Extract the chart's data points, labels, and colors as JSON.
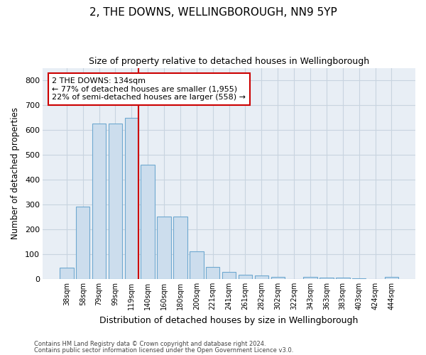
{
  "title1": "2, THE DOWNS, WELLINGBOROUGH, NN9 5YP",
  "title2": "Size of property relative to detached houses in Wellingborough",
  "xlabel": "Distribution of detached houses by size in Wellingborough",
  "ylabel": "Number of detached properties",
  "categories": [
    "38sqm",
    "58sqm",
    "79sqm",
    "99sqm",
    "119sqm",
    "140sqm",
    "160sqm",
    "180sqm",
    "200sqm",
    "221sqm",
    "241sqm",
    "261sqm",
    "282sqm",
    "302sqm",
    "322sqm",
    "343sqm",
    "363sqm",
    "383sqm",
    "403sqm",
    "424sqm",
    "444sqm"
  ],
  "values": [
    45,
    290,
    625,
    625,
    648,
    460,
    250,
    250,
    110,
    47,
    27,
    15,
    13,
    7,
    0,
    8,
    5,
    4,
    2,
    0,
    7
  ],
  "bar_color": "#ccdded",
  "bar_edge_color": "#6fa8d0",
  "annotation_text_line1": "2 THE DOWNS: 134sqm",
  "annotation_text_line2": "← 77% of detached houses are smaller (1,955)",
  "annotation_text_line3": "22% of semi-detached houses are larger (558) →",
  "annotation_box_color": "#ffffff",
  "annotation_box_edge": "#cc0000",
  "red_line_color": "#cc0000",
  "grid_color": "#c8d4e0",
  "background_color": "#e8eef5",
  "ylim": [
    0,
    850
  ],
  "yticks": [
    0,
    100,
    200,
    300,
    400,
    500,
    600,
    700,
    800
  ],
  "footer1": "Contains HM Land Registry data © Crown copyright and database right 2024.",
  "footer2": "Contains public sector information licensed under the Open Government Licence v3.0."
}
